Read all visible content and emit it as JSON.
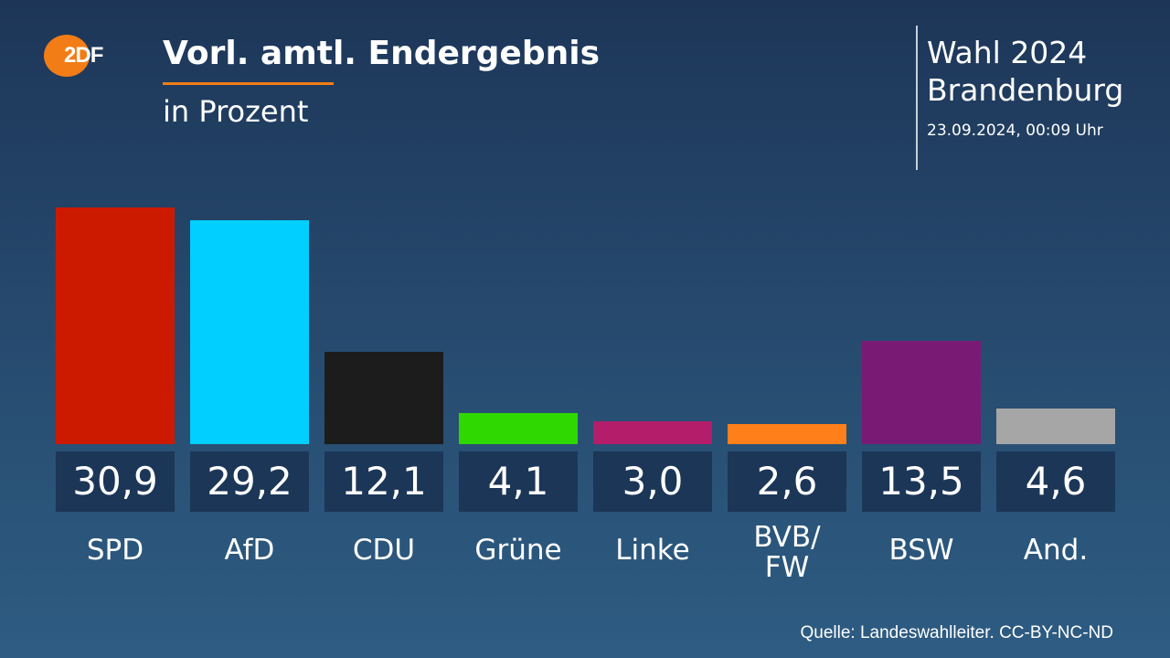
{
  "header": {
    "logo_text": "ZDF",
    "title": "Vorl. amtl. Endergebnis",
    "subtitle": "in Prozent",
    "election": "Wahl 2024",
    "region": "Brandenburg",
    "timestamp": "23.09.2024, 00:09 Uhr"
  },
  "footer": {
    "source": "Quelle: Landeswahlleiter. CC-BY-NC-ND"
  },
  "chart_data": {
    "type": "bar",
    "title": "Vorl. amtl. Endergebnis",
    "subtitle": "in Prozent",
    "categories": [
      "SPD",
      "AfD",
      "CDU",
      "Grüne",
      "Linke",
      "BVB/ FW",
      "BSW",
      "And."
    ],
    "values": [
      30.9,
      29.2,
      12.1,
      4.1,
      3.0,
      2.6,
      13.5,
      4.6
    ],
    "value_labels": [
      "30,9",
      "29,2",
      "12,1",
      "4,1",
      "3,0",
      "2,6",
      "13,5",
      "4,6"
    ],
    "colors": [
      "#cc1a00",
      "#00cfff",
      "#1c1c1c",
      "#2ed800",
      "#b31d6a",
      "#ff7f1a",
      "#791a75",
      "#a6a6a6"
    ],
    "ylim": [
      0,
      31
    ],
    "grid": false
  }
}
